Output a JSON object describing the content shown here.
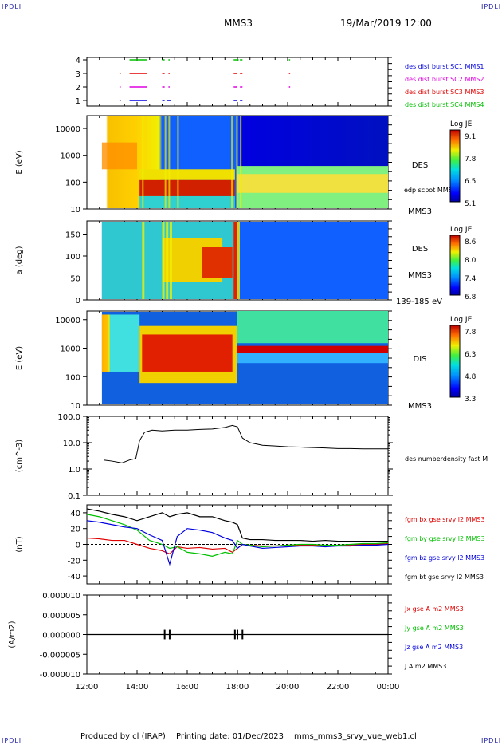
{
  "corners": {
    "tl": "IPDLI",
    "tr": "IPDLI",
    "bl": "IPDLI",
    "br": "IPDLI"
  },
  "header": {
    "spacecraft": "MMS3",
    "datetime": "19/Mar/2019 12:00"
  },
  "footer": {
    "produced": "Produced by cl (IRAP)",
    "printing": "Printing date: 01/Dec/2023",
    "script": "mms_mms3_srvy_vue_web1.cl"
  },
  "colors": {
    "red": "#e00000",
    "green": "#00c000",
    "blue": "#0000e0",
    "magenta": "#e000e0",
    "black": "#000000"
  },
  "chart_data": [
    {
      "type": "timeline",
      "ylim": [
        1,
        4
      ],
      "yticks": [
        "1",
        "2",
        "3",
        "4"
      ],
      "legend": [
        {
          "label": "des dist burst SC1 MMS1",
          "color": "#0000e0"
        },
        {
          "label": "des dist burst SC2 MMS2",
          "color": "#e000e0"
        },
        {
          "label": "des dist burst SC3 MMS3",
          "color": "#e00000"
        },
        {
          "label": "des dist burst SC4 MMS4",
          "color": "#00c000"
        }
      ],
      "series": [
        {
          "level": 4,
          "color": "#00c000",
          "intervals": [
            [
              13.7,
              14.4
            ],
            [
              15.0,
              15.1
            ],
            [
              15.25,
              15.3
            ],
            [
              17.85,
              18.0
            ],
            [
              18.1,
              18.2
            ],
            [
              18.0,
              18.05
            ],
            [
              20.05,
              20.1
            ]
          ]
        },
        {
          "level": 3,
          "color": "#e00000",
          "intervals": [
            [
              13.3,
              13.35
            ],
            [
              13.7,
              14.4
            ],
            [
              15.0,
              15.1
            ],
            [
              15.25,
              15.3
            ],
            [
              17.85,
              18.0
            ],
            [
              18.1,
              18.2
            ],
            [
              20.05,
              20.1
            ]
          ]
        },
        {
          "level": 2,
          "color": "#e000e0",
          "intervals": [
            [
              13.3,
              13.35
            ],
            [
              13.7,
              14.4
            ],
            [
              15.0,
              15.1
            ],
            [
              15.25,
              15.3
            ],
            [
              17.85,
              18.0
            ],
            [
              18.1,
              18.2
            ],
            [
              20.05,
              20.1
            ]
          ]
        },
        {
          "level": 1,
          "color": "#0000e0",
          "intervals": [
            [
              13.3,
              13.35
            ],
            [
              13.7,
              14.4
            ],
            [
              15.0,
              15.1
            ],
            [
              15.2,
              15.35
            ],
            [
              17.85,
              18.0
            ],
            [
              18.1,
              18.2
            ]
          ]
        }
      ]
    },
    {
      "type": "heatmap",
      "ylabel": "E (eV)",
      "yscale": "log",
      "ylim": [
        10,
        30000
      ],
      "yticks": [
        "10",
        "100",
        "1000",
        "10000"
      ],
      "instrument": "DES",
      "spacecraft": "MMS3",
      "annotation": "edp scpot MMS3",
      "colorbar": {
        "title": "Log JE",
        "ticks": [
          "9.1",
          "7.8",
          "6.5",
          "5.1"
        ]
      }
    },
    {
      "type": "heatmap",
      "ylabel": "a (deg)",
      "ylim": [
        0,
        180
      ],
      "yticks": [
        "0",
        "50",
        "100",
        "150"
      ],
      "instrument": "DES",
      "spacecraft": "MMS3",
      "energy_range": "139-185 eV",
      "colorbar": {
        "title": "Log JE",
        "ticks": [
          "8.6",
          "8.0",
          "7.4",
          "6.8"
        ]
      }
    },
    {
      "type": "heatmap",
      "ylabel": "E (eV)",
      "yscale": "log",
      "ylim": [
        10,
        20000
      ],
      "yticks": [
        "10",
        "100",
        "1000",
        "10000"
      ],
      "instrument": "DIS",
      "spacecraft": "MMS3",
      "colorbar": {
        "title": "Log JE",
        "ticks": [
          "7.8",
          "6.3",
          "4.8",
          "3.3"
        ]
      }
    },
    {
      "type": "line",
      "ylabel": "(cm^-3)",
      "yscale": "log",
      "ylim": [
        0.1,
        100
      ],
      "yticks": [
        "0.1",
        "1.0",
        "10.0",
        "100.0"
      ],
      "legend": [
        {
          "label": "des numberdensity fast M",
          "color": "#000000"
        }
      ],
      "x": [
        12.67,
        13.0,
        13.4,
        13.7,
        13.95,
        14.1,
        14.3,
        14.6,
        15.0,
        15.5,
        16.0,
        16.5,
        17.0,
        17.5,
        17.8,
        18.0,
        18.2,
        18.5,
        19.0,
        19.5,
        20.0,
        20.5,
        21.0,
        21.5,
        22.0,
        22.5,
        23.0,
        23.5,
        24.0
      ],
      "y": [
        2.2,
        2.0,
        1.7,
        2.2,
        2.5,
        12.0,
        25.0,
        30.0,
        28.0,
        30.0,
        30.0,
        32.0,
        33.0,
        38.0,
        45.0,
        40.0,
        15.0,
        10.0,
        8.0,
        7.5,
        7.0,
        6.8,
        6.5,
        6.3,
        6.0,
        6.0,
        5.8,
        5.8,
        5.8
      ]
    },
    {
      "type": "line",
      "ylabel": "(nT)",
      "ylim": [
        -50,
        50
      ],
      "yticks": [
        "-40",
        "-20",
        "0",
        "20",
        "40"
      ],
      "x": [
        12.0,
        12.5,
        13.0,
        13.5,
        14.0,
        14.5,
        15.0,
        15.3,
        15.6,
        16.0,
        16.5,
        17.0,
        17.5,
        17.8,
        18.0,
        18.2,
        18.5,
        19.0,
        19.5,
        20.0,
        20.5,
        21.0,
        21.5,
        22.0,
        22.5,
        23.0,
        23.5,
        24.0
      ],
      "series": [
        {
          "name": "fgm bx gse srvy l2 MMS3",
          "color": "#e00000",
          "values": [
            8,
            7,
            5,
            5,
            0,
            -5,
            -8,
            -12,
            -3,
            -5,
            -4,
            -6,
            -5,
            -10,
            -5,
            0,
            -1,
            -2,
            -2,
            -1,
            -1,
            -1,
            -2,
            -1,
            -1,
            0,
            0,
            1
          ]
        },
        {
          "name": "fgm by gse srvy l2 MMS3",
          "color": "#00c000",
          "values": [
            38,
            35,
            30,
            25,
            18,
            5,
            0,
            -5,
            -3,
            -10,
            -12,
            -15,
            -10,
            -12,
            5,
            0,
            -1,
            -3,
            -2,
            -1,
            0,
            0,
            -1,
            -1,
            0,
            1,
            1,
            2
          ]
        },
        {
          "name": "fgm bz gse srvy l2 MMS3",
          "color": "#0000e0",
          "values": [
            30,
            28,
            25,
            22,
            20,
            12,
            5,
            -25,
            10,
            20,
            18,
            15,
            8,
            5,
            -5,
            0,
            -2,
            -5,
            -4,
            -3,
            -2,
            -2,
            -3,
            -2,
            -2,
            -1,
            -1,
            0
          ]
        },
        {
          "name": "fgm bt gse srvy l2 MMS3",
          "color": "#000000",
          "values": [
            45,
            42,
            38,
            35,
            30,
            35,
            40,
            35,
            38,
            40,
            35,
            35,
            30,
            28,
            25,
            8,
            6,
            6,
            5,
            5,
            5,
            4,
            5,
            4,
            4,
            4,
            4,
            4
          ]
        }
      ]
    },
    {
      "type": "line",
      "ylabel": "(A/m2)",
      "ylim": [
        -1e-05,
        1e-05
      ],
      "yticks": [
        "-0.000010",
        "-0.000005",
        "0.000000",
        "0.000005",
        "0.000010"
      ],
      "xticks": [
        "12:00",
        "14:00",
        "16:00",
        "18:00",
        "20:00",
        "22:00",
        "00:00"
      ],
      "xlim": [
        12,
        24
      ],
      "series": [
        {
          "name": "Jx gse A m2 MMS3",
          "color": "#e00000"
        },
        {
          "name": "Jy gse A m2 MMS3",
          "color": "#00c000"
        },
        {
          "name": "Jz gse A m2 MMS3",
          "color": "#0000e0"
        },
        {
          "name": "J A m2 MMS3",
          "color": "#000000",
          "values": [
            0,
            0,
            0,
            0,
            0,
            0,
            0
          ]
        }
      ]
    }
  ]
}
